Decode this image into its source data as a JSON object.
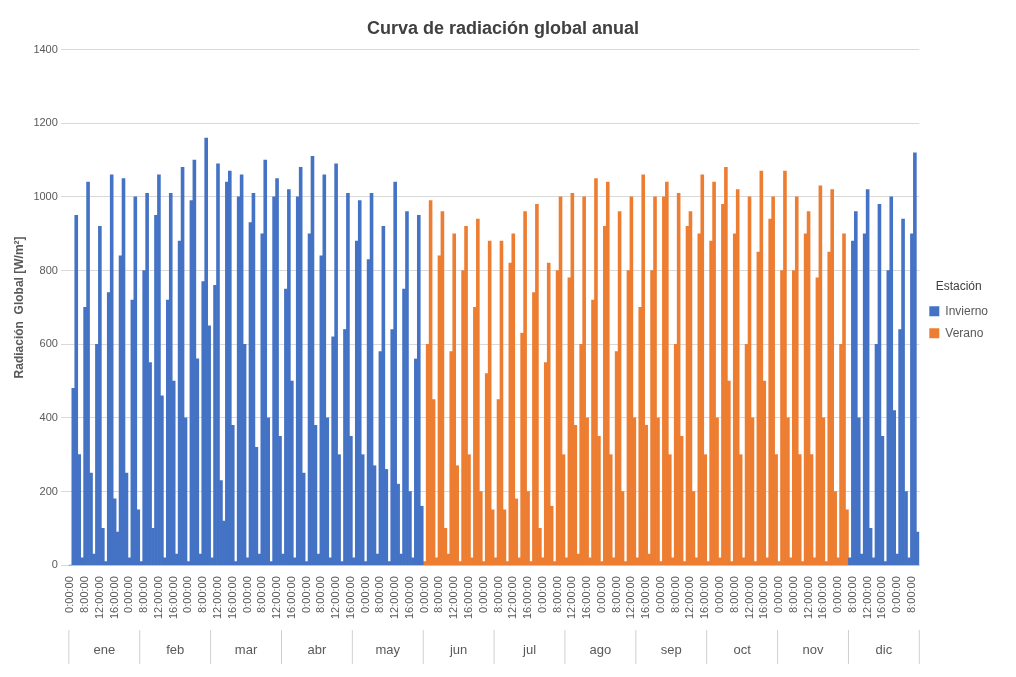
{
  "chart_data": {
    "type": "bar",
    "title": "Curva de radiación global anual",
    "ylabel": "Radiación  Global [W/m²]",
    "legend_title": "Estación",
    "legend": "right",
    "grid": "y",
    "ylim": [
      0,
      1400
    ],
    "yticks": [
      0,
      200,
      400,
      600,
      800,
      1000,
      1200,
      1400
    ],
    "annotations": [
      "ene",
      "feb",
      "mar",
      "abr",
      "may",
      "jun",
      "jul",
      "ago",
      "sep",
      "oct",
      "nov",
      "dic"
    ],
    "categories": [
      "0:00:00",
      null,
      null,
      null,
      null,
      "8:00:00",
      null,
      null,
      null,
      null,
      "12:00:00",
      null,
      null,
      null,
      null,
      "16:00:00",
      null,
      null,
      null,
      null,
      "0:00:00",
      null,
      null,
      null,
      null,
      "8:00:00",
      null,
      null,
      null,
      null,
      "12:00:00",
      null,
      null,
      null,
      null,
      "16:00:00",
      null,
      null,
      null,
      null,
      "0:00:00",
      null,
      null,
      null,
      null,
      "8:00:00",
      null,
      null,
      null,
      null,
      "12:00:00",
      null,
      null,
      null,
      null,
      "16:00:00",
      null,
      null,
      null,
      null,
      "0:00:00",
      null,
      null,
      null,
      null,
      "8:00:00",
      null,
      null,
      null,
      null,
      "12:00:00",
      null,
      null,
      null,
      null,
      "16:00:00",
      null,
      null,
      null,
      null,
      "0:00:00",
      null,
      null,
      null,
      null,
      "8:00:00",
      null,
      null,
      null,
      null,
      "12:00:00",
      null,
      null,
      null,
      null,
      "16:00:00",
      null,
      null,
      null,
      null,
      "0:00:00",
      null,
      null,
      null,
      null,
      "8:00:00",
      null,
      null,
      null,
      null,
      "12:00:00",
      null,
      null,
      null,
      null,
      "16:00:00",
      null,
      null,
      null,
      null,
      "0:00:00",
      null,
      null,
      null,
      null,
      "8:00:00",
      null,
      null,
      null,
      null,
      "12:00:00",
      null,
      null,
      null,
      null,
      "16:00:00",
      null,
      null,
      null,
      null,
      "0:00:00",
      null,
      null,
      null,
      null,
      "8:00:00",
      null,
      null,
      null,
      null,
      "12:00:00",
      null,
      null,
      null,
      null,
      "16:00:00",
      null,
      null,
      null,
      null,
      "0:00:00",
      null,
      null,
      null,
      null,
      "8:00:00",
      null,
      null,
      null,
      null,
      "12:00:00",
      null,
      null,
      null,
      null,
      "16:00:00",
      null,
      null,
      null,
      null,
      "0:00:00",
      null,
      null,
      null,
      null,
      "8:00:00",
      null,
      null,
      null,
      null,
      "12:00:00",
      null,
      null,
      null,
      null,
      "16:00:00",
      null,
      null,
      null,
      null,
      "0:00:00",
      null,
      null,
      null,
      null,
      "8:00:00",
      null,
      null,
      null,
      null,
      "12:00:00",
      null,
      null,
      null,
      null,
      "16:00:00",
      null,
      null,
      null,
      null,
      "0:00:00",
      null,
      null,
      null,
      null,
      "8:00:00",
      null,
      null,
      null,
      null,
      "12:00:00",
      null,
      null,
      null,
      null,
      "16:00:00",
      null,
      null,
      null,
      null,
      "0:00:00",
      null,
      null,
      null,
      null,
      "8:00:00",
      null,
      null,
      null,
      null,
      "12:00:00",
      null,
      null,
      null,
      null,
      "16:00:00",
      null,
      null,
      null,
      null,
      "0:00:00",
      null,
      null,
      null,
      null,
      "8:00:00",
      null,
      null,
      null,
      null,
      "12:00:00",
      null,
      null,
      null,
      null,
      "16:00:00",
      null,
      null,
      null,
      null,
      "0:00:00",
      null,
      null,
      null,
      null,
      "8:00:00",
      null,
      null
    ],
    "series": [
      {
        "name": "Invierno",
        "color": "#4472c4",
        "values": [
          0,
          480,
          950,
          300,
          20,
          700,
          1040,
          250,
          30,
          600,
          920,
          100,
          10,
          740,
          1060,
          180,
          90,
          840,
          1050,
          250,
          20,
          720,
          1000,
          150,
          10,
          800,
          1010,
          550,
          100,
          950,
          1060,
          460,
          20,
          720,
          1010,
          500,
          30,
          880,
          1080,
          400,
          10,
          990,
          1100,
          560,
          30,
          770,
          1160,
          650,
          20,
          760,
          1090,
          230,
          120,
          1040,
          1070,
          380,
          10,
          1000,
          1060,
          600,
          20,
          930,
          1010,
          320,
          30,
          900,
          1100,
          400,
          10,
          1000,
          1050,
          350,
          30,
          750,
          1020,
          500,
          20,
          1000,
          1080,
          250,
          10,
          900,
          1110,
          380,
          30,
          840,
          1060,
          400,
          20,
          620,
          1090,
          300,
          10,
          640,
          1010,
          350,
          20,
          880,
          990,
          300,
          10,
          830,
          1010,
          270,
          30,
          580,
          920,
          260,
          10,
          640,
          1040,
          220,
          30,
          750,
          960,
          200,
          20,
          560,
          950,
          160,
          null,
          null,
          null,
          null,
          null,
          null,
          null,
          null,
          null,
          null,
          null,
          null,
          null,
          null,
          null,
          null,
          null,
          null,
          null,
          null,
          null,
          null,
          null,
          null,
          null,
          null,
          null,
          null,
          null,
          null,
          null,
          null,
          null,
          null,
          null,
          null,
          null,
          null,
          null,
          null,
          null,
          null,
          null,
          null,
          null,
          null,
          null,
          null,
          null,
          null,
          null,
          null,
          null,
          null,
          null,
          null,
          null,
          null,
          null,
          null,
          null,
          null,
          null,
          null,
          null,
          null,
          null,
          null,
          null,
          null,
          null,
          null,
          null,
          null,
          null,
          null,
          null,
          null,
          null,
          null,
          null,
          null,
          null,
          null,
          null,
          null,
          null,
          null,
          null,
          null,
          null,
          null,
          null,
          null,
          null,
          null,
          null,
          null,
          null,
          null,
          null,
          null,
          null,
          null,
          null,
          null,
          null,
          null,
          null,
          null,
          null,
          null,
          null,
          null,
          null,
          null,
          null,
          null,
          null,
          null,
          null,
          null,
          null,
          null,
          null,
          null,
          null,
          null,
          null,
          null,
          null,
          null,
          null,
          null,
          null,
          null,
          null,
          null,
          null,
          null,
          null,
          null,
          null,
          null,
          20,
          880,
          960,
          400,
          30,
          900,
          1020,
          100,
          20,
          600,
          980,
          350,
          10,
          800,
          1000,
          420,
          30,
          640,
          940,
          200,
          20,
          900,
          1120,
          90
        ]
      },
      {
        "name": "Verano",
        "color": "#ed7d31",
        "values": [
          null,
          null,
          null,
          null,
          null,
          null,
          null,
          null,
          null,
          null,
          null,
          null,
          null,
          null,
          null,
          null,
          null,
          null,
          null,
          null,
          null,
          null,
          null,
          null,
          null,
          null,
          null,
          null,
          null,
          null,
          null,
          null,
          null,
          null,
          null,
          null,
          null,
          null,
          null,
          null,
          null,
          null,
          null,
          null,
          null,
          null,
          null,
          null,
          null,
          null,
          null,
          null,
          null,
          null,
          null,
          null,
          null,
          null,
          null,
          null,
          null,
          null,
          null,
          null,
          null,
          null,
          null,
          null,
          null,
          null,
          null,
          null,
          null,
          null,
          null,
          null,
          null,
          null,
          null,
          null,
          null,
          null,
          null,
          null,
          null,
          null,
          null,
          null,
          null,
          null,
          null,
          null,
          null,
          null,
          null,
          null,
          null,
          null,
          null,
          null,
          null,
          null,
          null,
          null,
          null,
          null,
          null,
          null,
          null,
          null,
          null,
          null,
          null,
          null,
          null,
          null,
          null,
          null,
          null,
          null,
          10,
          600,
          990,
          450,
          20,
          840,
          960,
          100,
          30,
          580,
          900,
          270,
          10,
          800,
          920,
          300,
          20,
          700,
          940,
          200,
          10,
          520,
          880,
          150,
          20,
          450,
          880,
          150,
          10,
          820,
          900,
          180,
          20,
          630,
          960,
          200,
          10,
          740,
          980,
          100,
          20,
          550,
          820,
          160,
          10,
          800,
          1000,
          300,
          20,
          780,
          1010,
          380,
          30,
          600,
          1000,
          400,
          20,
          720,
          1050,
          350,
          10,
          920,
          1040,
          300,
          20,
          580,
          960,
          200,
          10,
          800,
          1000,
          400,
          20,
          700,
          1060,
          380,
          30,
          800,
          1000,
          400,
          10,
          1000,
          1040,
          300,
          20,
          600,
          1010,
          350,
          10,
          920,
          960,
          200,
          20,
          900,
          1060,
          300,
          10,
          880,
          1040,
          400,
          20,
          980,
          1080,
          500,
          10,
          900,
          1020,
          300,
          20,
          600,
          1000,
          400,
          10,
          850,
          1070,
          500,
          20,
          940,
          1000,
          300,
          10,
          800,
          1070,
          400,
          20,
          800,
          1000,
          300,
          10,
          900,
          960,
          300,
          20,
          780,
          1030,
          400,
          10,
          850,
          1020,
          200,
          20,
          600,
          900,
          150,
          null,
          null,
          null,
          null,
          null,
          null,
          null,
          null,
          null,
          null,
          null,
          null,
          null,
          null,
          null,
          null,
          null,
          null,
          null,
          null,
          null,
          null,
          null,
          null
        ]
      }
    ]
  }
}
